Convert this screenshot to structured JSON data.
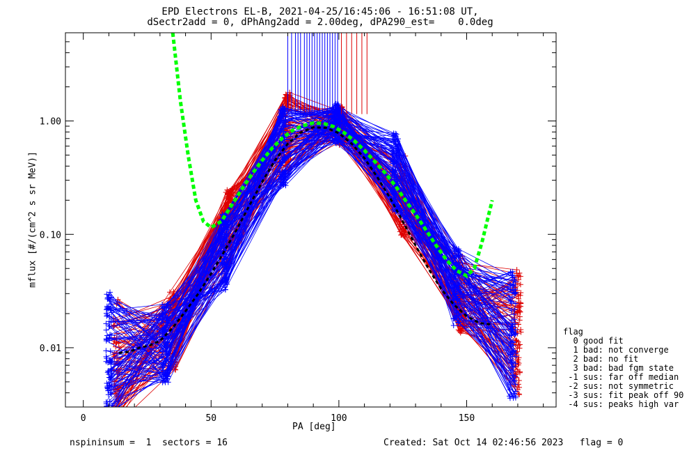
{
  "chart_data": {
    "type": "scatter",
    "title": "EPD Electrons EL-B, 2021-04-25/16:45:06 - 16:51:08 UT,",
    "subtitle": "dSectr2add = 0, dPhAng2add = 2.00deg, dPA290_est=    0.0deg",
    "xlabel": "PA [deg]",
    "ylabel": "mflux [#/(cm^2 s sr MeV)]",
    "xlim": [
      -7,
      185
    ],
    "ylim": [
      0.003,
      6.0
    ],
    "yscale": "log",
    "xticks": [
      {
        "v": 0,
        "label": "0"
      },
      {
        "v": 50,
        "label": "50"
      },
      {
        "v": 100,
        "label": "100"
      },
      {
        "v": 150,
        "label": "150"
      }
    ],
    "yticks": [
      {
        "v": 0.01,
        "label": "0.01"
      },
      {
        "v": 0.1,
        "label": "0.10"
      },
      {
        "v": 1.0,
        "label": "1.00"
      }
    ],
    "colors": {
      "series_a": "#0000ff",
      "series_b": "#dd0000",
      "fit": "#00ff00",
      "fit_dark": "#000000"
    },
    "blue_base": [
      [
        10,
        0.0085
      ],
      [
        32,
        0.011
      ],
      [
        55,
        0.07
      ],
      [
        78,
        0.6
      ],
      [
        99,
        0.95
      ],
      [
        122,
        0.35
      ],
      [
        146,
        0.035
      ],
      [
        168,
        0.013
      ]
    ],
    "red_base": [
      [
        13,
        0.0075
      ],
      [
        35,
        0.014
      ],
      [
        57,
        0.12
      ],
      [
        80,
        0.8
      ],
      [
        101,
        0.9
      ],
      [
        125,
        0.22
      ],
      [
        148,
        0.03
      ],
      [
        170,
        0.014
      ]
    ],
    "green_fit": [
      [
        35,
        6.0
      ],
      [
        38,
        1.5
      ],
      [
        41,
        0.5
      ],
      [
        44,
        0.2
      ],
      [
        47,
        0.13
      ],
      [
        50,
        0.115
      ],
      [
        54,
        0.13
      ],
      [
        58,
        0.18
      ],
      [
        62,
        0.25
      ],
      [
        66,
        0.34
      ],
      [
        70,
        0.45
      ],
      [
        74,
        0.58
      ],
      [
        78,
        0.71
      ],
      [
        82,
        0.83
      ],
      [
        86,
        0.91
      ],
      [
        90,
        0.96
      ],
      [
        94,
        0.95
      ],
      [
        98,
        0.89
      ],
      [
        102,
        0.79
      ],
      [
        106,
        0.67
      ],
      [
        110,
        0.55
      ],
      [
        114,
        0.44
      ],
      [
        118,
        0.35
      ],
      [
        122,
        0.27
      ],
      [
        126,
        0.2
      ],
      [
        130,
        0.15
      ],
      [
        134,
        0.11
      ],
      [
        138,
        0.08
      ],
      [
        142,
        0.06
      ],
      [
        146,
        0.048
      ],
      [
        150,
        0.043
      ],
      [
        153,
        0.05
      ],
      [
        156,
        0.085
      ],
      [
        160,
        0.2
      ]
    ],
    "black_fit": [
      [
        14,
        0.009
      ],
      [
        18,
        0.0092
      ],
      [
        22,
        0.01
      ],
      [
        26,
        0.0105
      ],
      [
        30,
        0.0115
      ],
      [
        35,
        0.015
      ],
      [
        40,
        0.021
      ],
      [
        45,
        0.03
      ],
      [
        50,
        0.045
      ],
      [
        55,
        0.07
      ],
      [
        60,
        0.11
      ],
      [
        65,
        0.18
      ],
      [
        70,
        0.29
      ],
      [
        75,
        0.45
      ],
      [
        80,
        0.63
      ],
      [
        85,
        0.79
      ],
      [
        90,
        0.88
      ],
      [
        95,
        0.87
      ],
      [
        100,
        0.78
      ],
      [
        105,
        0.63
      ],
      [
        110,
        0.47
      ],
      [
        115,
        0.32
      ],
      [
        120,
        0.21
      ],
      [
        125,
        0.13
      ],
      [
        130,
        0.08
      ],
      [
        135,
        0.05
      ],
      [
        140,
        0.033
      ],
      [
        145,
        0.024
      ],
      [
        150,
        0.019
      ],
      [
        155,
        0.0165
      ],
      [
        160,
        0.016
      ]
    ],
    "spike_x_blue": [
      80,
      81.5,
      83,
      84,
      85,
      86.5,
      87.5,
      88.5,
      89.5,
      90.5,
      91.5,
      92.5,
      93.5,
      94.5,
      95.5,
      96.5,
      97.5,
      98.5,
      99.5
    ],
    "spike_x_red": [
      101,
      103,
      105,
      107,
      109,
      111
    ],
    "legend_title": "flag",
    "legend": [
      "  0 good fit",
      "  1 bad: not converge",
      "  2 bad: no fit",
      "  3 bad: bad fgm state",
      " -1 sus: far off median",
      " -2 sus: not symmetric",
      " -3 sus: fit peak off 90",
      " -4 sus: peaks high var"
    ]
  },
  "footer": {
    "left": "nspininsum =  1  sectors = 16",
    "right": "Created: Sat Oct 14 02:46:56 2023   flag = 0"
  }
}
